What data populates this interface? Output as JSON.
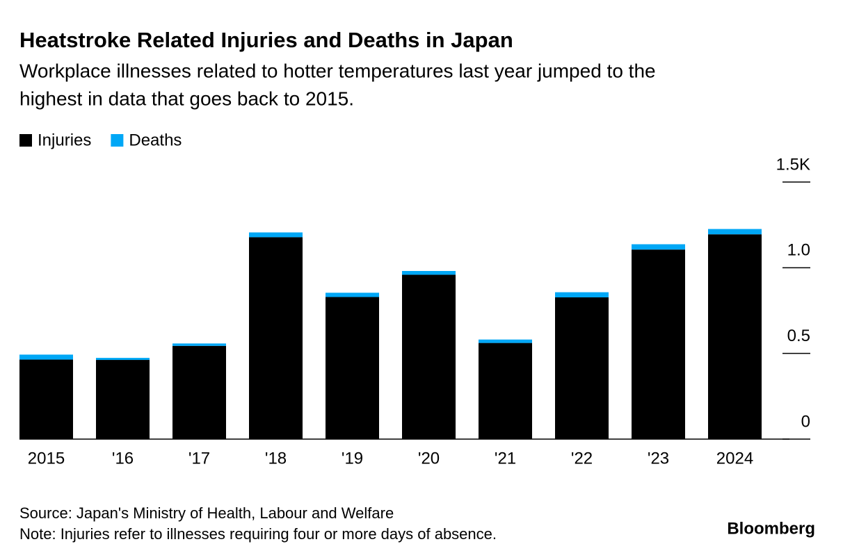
{
  "chart_data": {
    "type": "stacked_bar",
    "title": "Heatstroke Related Injuries and Deaths in Japan",
    "subtitle": [
      "Workplace illnesses related to hotter temperatures last year jumped to the",
      "highest in data that goes back to 2015."
    ],
    "categories": [
      "2015",
      "'16",
      "'17",
      "'18",
      "'19",
      "'20",
      "'21",
      "'22",
      "'23",
      "2024"
    ],
    "series": [
      {
        "name": "Injuries",
        "color": "#000000",
        "values": [
          0.464,
          0.462,
          0.544,
          1.178,
          0.829,
          0.959,
          0.561,
          0.827,
          1.106,
          1.195
        ]
      },
      {
        "name": "Deaths",
        "color": "#00a7f6",
        "values": [
          0.029,
          0.012,
          0.014,
          0.028,
          0.025,
          0.022,
          0.02,
          0.03,
          0.031,
          0.031
        ]
      }
    ],
    "ylim": [
      0,
      1.5
    ],
    "yticks": [
      0,
      0.5,
      {
        "value": 1,
        "label": "1.0"
      },
      {
        "value": 1.5,
        "label": "1.5K"
      }
    ],
    "source": "Source: Japan's Ministry of Health, Labour and Welfare",
    "note": "Note: Injuries refer to illnesses requiring four or more days of absence.",
    "brand": "Bloomberg"
  }
}
